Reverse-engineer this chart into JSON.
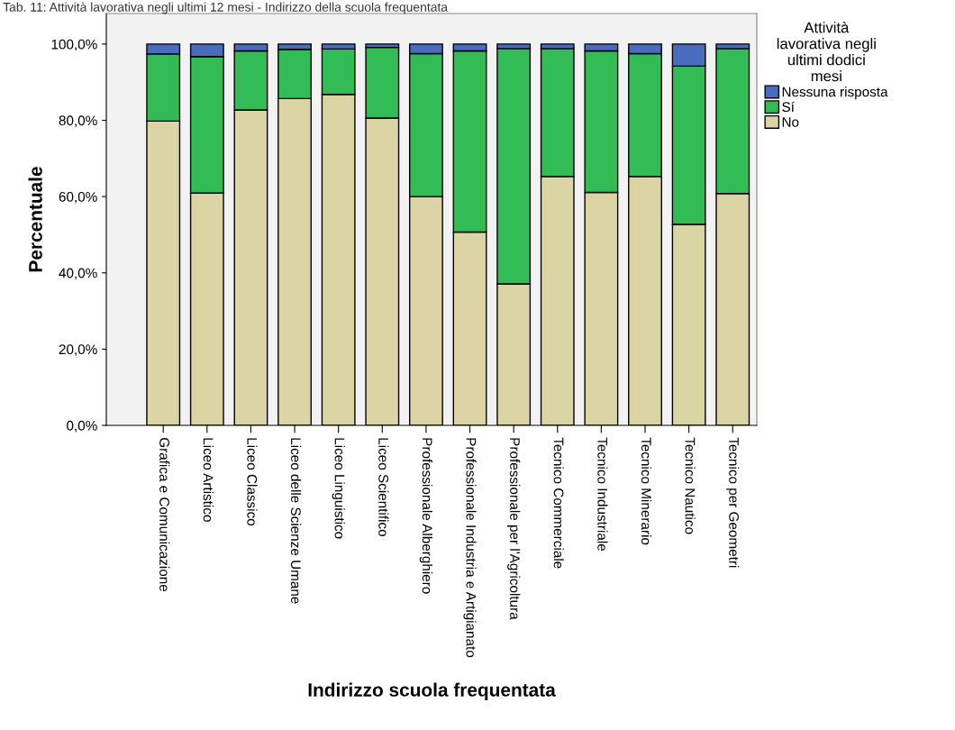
{
  "chart_data": {
    "type": "bar",
    "stacked": true,
    "title": "Tab. 11: Attività lavorativa negli ultimi 12 mesi - Indirizzo della scuola frequentata",
    "xlabel": "Indirizzo scuola frequentata",
    "ylabel": "Percentuale",
    "legend_title": "Attività lavorativa negli ultimi dodici mesi",
    "categories": [
      "Grafica e Comunicazione",
      "Liceo Artistico",
      "Liceo Classico",
      "Liceo delle Scienze Umane",
      "Liceo Linguistico",
      "Liceo Scientifico",
      "Professionale Alberghiero",
      "Professionale Industria e Artigianato",
      "Professionale per l'Agricoltura",
      "Tecnico Commerciale",
      "Tecnico Industriale",
      "Tecnico Minerario",
      "Tecnico Nautico",
      "Tecnico per Geometri"
    ],
    "series": [
      {
        "name": "No",
        "color": "#dbd4a5",
        "values": [
          79.8,
          60.9,
          82.7,
          85.7,
          86.8,
          80.6,
          60.0,
          50.7,
          37.1,
          65.3,
          61.1,
          65.3,
          52.7,
          60.8
        ]
      },
      {
        "name": "Sí",
        "color": "#33bb55",
        "values": [
          17.6,
          35.8,
          15.5,
          12.9,
          11.9,
          18.5,
          37.5,
          47.5,
          61.7,
          33.5,
          37.1,
          32.2,
          41.5,
          38.0
        ]
      },
      {
        "name": "Nessuna risposta",
        "color": "#4a6cbf",
        "values": [
          2.6,
          3.3,
          1.8,
          1.4,
          1.3,
          0.9,
          2.5,
          1.8,
          1.2,
          1.2,
          1.8,
          2.5,
          5.8,
          1.2
        ]
      }
    ],
    "ylim": [
      0,
      108
    ],
    "yticks": [
      {
        "value": 0,
        "label": "0,0%"
      },
      {
        "value": 20,
        "label": "20,0%"
      },
      {
        "value": 40,
        "label": "40,0%"
      },
      {
        "value": 60,
        "label": "60,0%"
      },
      {
        "value": 80,
        "label": "80,0%"
      },
      {
        "value": 100,
        "label": "100,0%"
      }
    ],
    "grid": false,
    "legend": "right"
  }
}
